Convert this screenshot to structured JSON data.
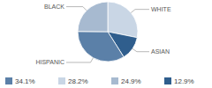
{
  "chart_data": {
    "type": "pie",
    "categories": [
      "WHITE",
      "ASIAN",
      "HISPANIC",
      "BLACK"
    ],
    "values": [
      28.2,
      12.9,
      34.1,
      24.9
    ],
    "value_labels": [
      "28.2%",
      "12.9%",
      "34.1%",
      "24.9%"
    ],
    "colors": [
      "#c9d6e5",
      "#2f5e8d",
      "#5b80a8",
      "#a7bad0"
    ]
  }
}
